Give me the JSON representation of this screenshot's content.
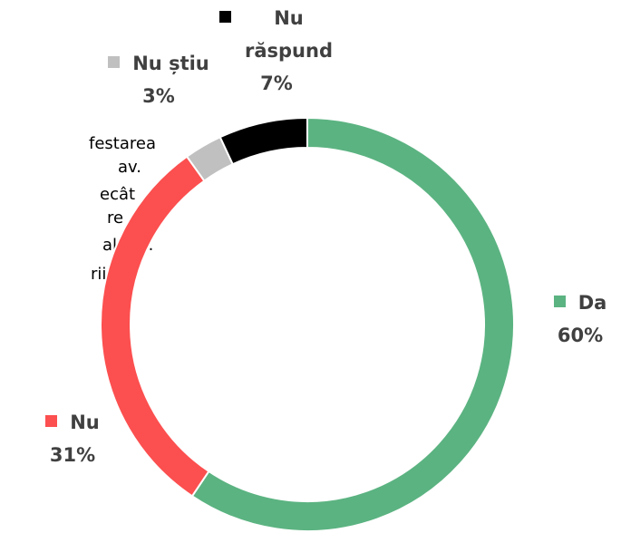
{
  "chart_data": {
    "type": "donut",
    "categories": [
      "Da",
      "Nu",
      "Nu știu",
      "Nu răspund"
    ],
    "values": [
      60,
      31,
      3,
      7
    ],
    "value_labels": [
      "60%",
      "31%",
      "3%",
      "7%"
    ],
    "colors": [
      "#5bb381",
      "#fc4f4f",
      "#c0c0c0",
      "#000000"
    ],
    "annotation_lines": [
      "festarea",
      "av.",
      "ecât",
      "re",
      "al urii.",
      "rii și"
    ]
  }
}
